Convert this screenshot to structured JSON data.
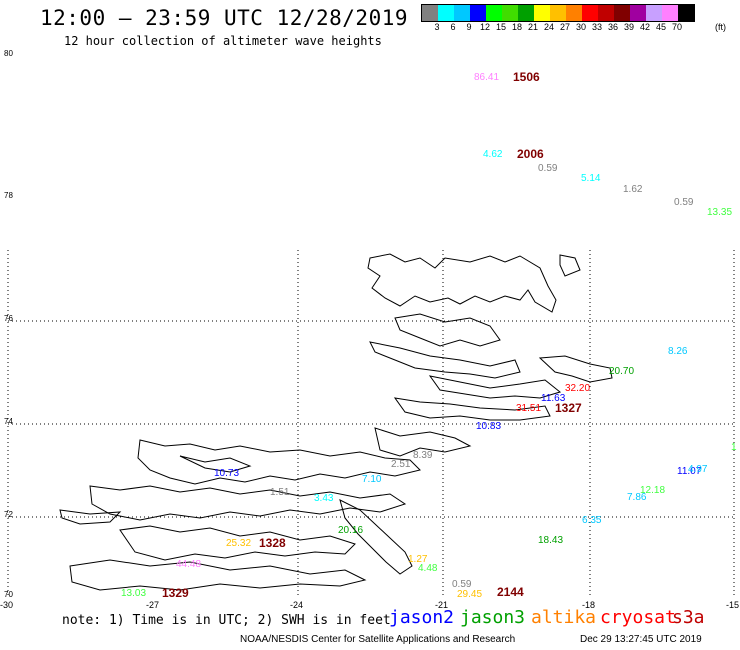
{
  "header": {
    "title": "12:00 – 23:59 UTC 12/28/2019",
    "subtitle": "12 hour collection of altimeter wave heights"
  },
  "legend": {
    "swatches": [
      "#808080",
      "#00ffff",
      "#00c8ff",
      "#0000ff",
      "#00ff00",
      "#40dd00",
      "#00a000",
      "#ffff00",
      "#ffc000",
      "#ff8000",
      "#ff0000",
      "#c00000",
      "#800000",
      "#a000a0",
      "#c8a0ff",
      "#ff80ff",
      "#000000"
    ],
    "labels": [
      "3",
      "6",
      "9",
      "12",
      "15",
      "18",
      "21",
      "24",
      "27",
      "30",
      "33",
      "36",
      "39",
      "42",
      "45",
      "70"
    ],
    "unit": "(ft)"
  },
  "axes": {
    "lat_labels": [
      "80",
      "78",
      "76",
      "74",
      "72",
      "70"
    ],
    "lon_labels": [
      "-30",
      "-27",
      "-24",
      "-21",
      "-18",
      "-15"
    ]
  },
  "wave_labels": [
    {
      "text": "86.41",
      "color": "#ff80ff"
    },
    {
      "text": "1506",
      "color": "#800000"
    },
    {
      "text": "4.62",
      "color": "#00ffff"
    },
    {
      "text": "2006",
      "color": "#800000"
    },
    {
      "text": "0.59",
      "color": "#808080"
    },
    {
      "text": "5.14",
      "color": "#00ffff"
    },
    {
      "text": "1.62",
      "color": "#808080"
    },
    {
      "text": "0.59",
      "color": "#808080"
    },
    {
      "text": "13.35",
      "color": "#40ff40"
    },
    {
      "text": "8.26",
      "color": "#00c8ff"
    },
    {
      "text": "20.70",
      "color": "#00a000"
    },
    {
      "text": "32.20",
      "color": "#ff0000"
    },
    {
      "text": "11.63",
      "color": "#0000ff"
    },
    {
      "text": "31.51",
      "color": "#ff0000"
    },
    {
      "text": "1327",
      "color": "#800000"
    },
    {
      "text": "10.83",
      "color": "#0000ff"
    },
    {
      "text": "1",
      "color": "#40ff40"
    },
    {
      "text": "8.39",
      "color": "#808080"
    },
    {
      "text": "2.51",
      "color": "#808080"
    },
    {
      "text": "10.73",
      "color": "#0000ff"
    },
    {
      "text": "7.10",
      "color": "#00c8ff"
    },
    {
      "text": "11.07",
      "color": "#0000ff"
    },
    {
      "text": "4.97",
      "color": "#00c8ff"
    },
    {
      "text": "1.51",
      "color": "#808080"
    },
    {
      "text": "3.43",
      "color": "#00ffff"
    },
    {
      "text": "12.18",
      "color": "#40ff40"
    },
    {
      "text": "7.86",
      "color": "#00c8ff"
    },
    {
      "text": "6.35",
      "color": "#00c8ff"
    },
    {
      "text": "20.16",
      "color": "#00a000"
    },
    {
      "text": "18.43",
      "color": "#00a000"
    },
    {
      "text": "25.32",
      "color": "#ffc000"
    },
    {
      "text": "1328",
      "color": "#800000"
    },
    {
      "text": "1.27",
      "color": "#ffc000"
    },
    {
      "text": "44.48",
      "color": "#ff80ff"
    },
    {
      "text": "4.48",
      "color": "#40ff40"
    },
    {
      "text": "0.59",
      "color": "#808080"
    },
    {
      "text": "29.45",
      "color": "#ffc000"
    },
    {
      "text": "2144",
      "color": "#800000"
    },
    {
      "text": "13.03",
      "color": "#40ff40"
    },
    {
      "text": "1329",
      "color": "#800000"
    }
  ],
  "footer": {
    "note": "note: 1) Time is in UTC; 2) SWH is in feet",
    "satellites": [
      {
        "name": "jason2",
        "color": "#0000ff"
      },
      {
        "name": "jason3",
        "color": "#00a000"
      },
      {
        "name": "altika",
        "color": "#ff8000"
      },
      {
        "name": "cryosat",
        "color": "#ff0000"
      },
      {
        "name": "s3a",
        "color": "#c00000"
      }
    ],
    "credit": "NOAA/NESDIS Center for Satellite Applications and Research",
    "timestamp": "Dec 29 13:27:45 UTC 2019"
  }
}
